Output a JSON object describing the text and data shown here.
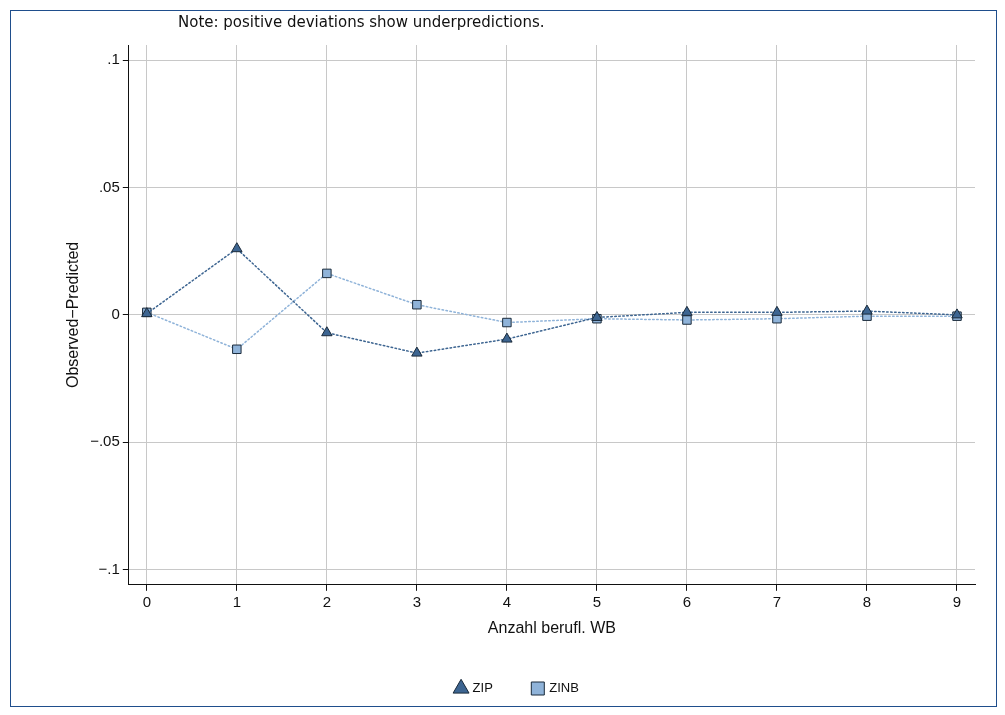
{
  "chart_data": {
    "type": "line",
    "annotations": [
      "Note: positive deviations show underpredictions."
    ],
    "xlabel": "Anzahl berufl. WB",
    "ylabel": "Observed−Predicted",
    "x": [
      0,
      1,
      2,
      3,
      4,
      5,
      6,
      7,
      8,
      9
    ],
    "series": [
      {
        "name": "ZIP",
        "color": "#3d6591",
        "marker": "triangle",
        "values": [
          0.0005,
          0.026,
          -0.007,
          -0.015,
          -0.0095,
          -0.001,
          0.001,
          0.001,
          0.0015,
          0
        ]
      },
      {
        "name": "ZINB",
        "color": "#8fb3d9",
        "marker": "square",
        "values": [
          0.001,
          -0.0135,
          0.0163,
          0.004,
          -0.003,
          -0.0015,
          -0.002,
          -0.0015,
          -0.0005,
          -0.0005
        ]
      }
    ],
    "xlim": [
      -0.2,
      9.2
    ],
    "xticks": [
      0,
      1,
      2,
      3,
      4,
      5,
      6,
      7,
      8,
      9
    ],
    "ylim": [
      -0.106,
      0.106
    ],
    "yticks": [
      {
        "value": -0.1,
        "label": "−.1"
      },
      {
        "value": -0.05,
        "label": "−.05"
      },
      0,
      {
        "value": 0.05,
        "label": ".05"
      },
      {
        "value": 0.1,
        "label": ".1"
      }
    ],
    "grid": true,
    "legend": "bottom",
    "line_style": "dotted"
  }
}
